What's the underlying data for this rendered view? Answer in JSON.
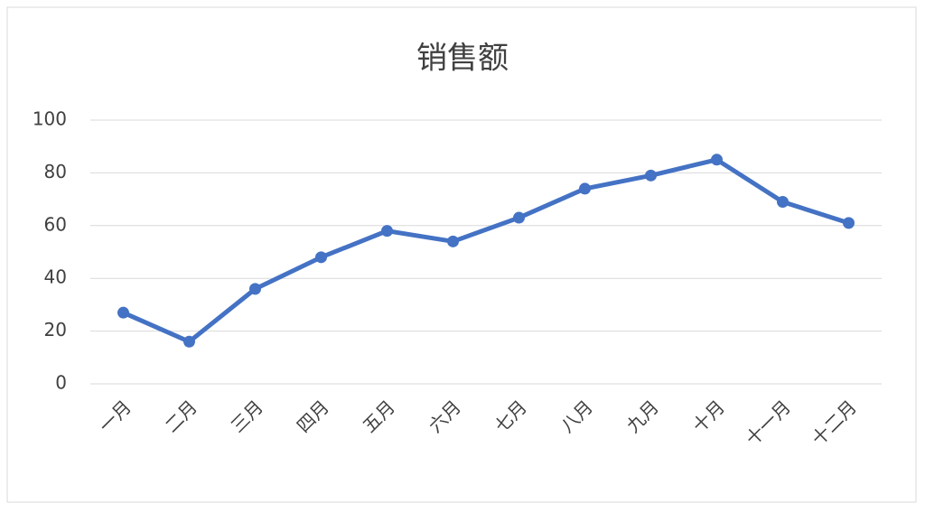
{
  "chart_data": {
    "type": "line",
    "title": "销售额",
    "categories": [
      "一月",
      "二月",
      "三月",
      "四月",
      "五月",
      "六月",
      "七月",
      "八月",
      "九月",
      "十月",
      "十一月",
      "十二月"
    ],
    "series": [
      {
        "name": "销售额",
        "color": "#4472c4",
        "values": [
          27,
          16,
          36,
          48,
          58,
          54,
          63,
          74,
          79,
          85,
          69,
          61
        ]
      }
    ],
    "ylim": [
      0,
      100
    ],
    "yticks": [
      0,
      20,
      40,
      60,
      80,
      100
    ],
    "grid": true
  }
}
